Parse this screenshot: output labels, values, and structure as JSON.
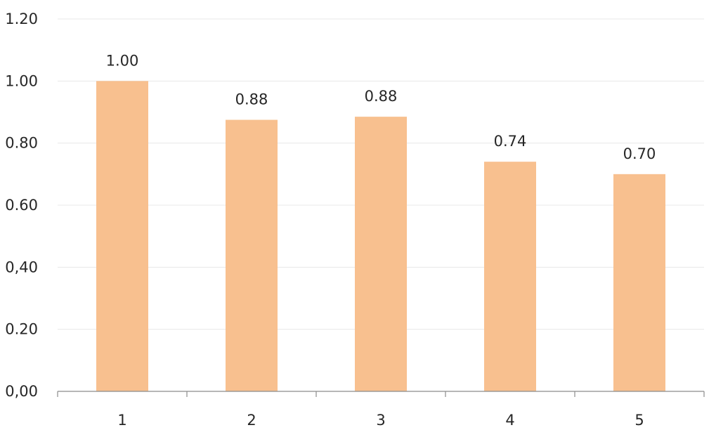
{
  "chart_data": {
    "type": "bar",
    "categories": [
      "1",
      "2",
      "3",
      "4",
      "5"
    ],
    "values": [
      1.0,
      0.875,
      0.885,
      0.74,
      0.7
    ],
    "data_labels": [
      "1.00",
      "0.88",
      "0.88",
      "0.74",
      "0.70"
    ],
    "y_ticks": [
      0,
      0.2,
      0.4,
      0.6,
      0.8,
      1.0,
      1.2
    ],
    "y_tick_labels": [
      "0,00",
      "0.20",
      "0,40",
      "0.60",
      "0.80",
      "1.00",
      "1.20"
    ],
    "ylim": [
      0,
      1.2
    ],
    "grid": true,
    "bar_color": "#f8c08f",
    "title": "",
    "xlabel": "",
    "ylabel": ""
  }
}
